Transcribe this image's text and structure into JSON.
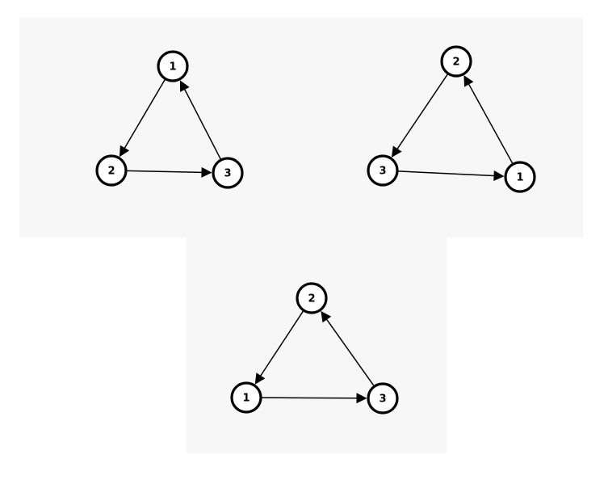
{
  "diagrams": [
    {
      "id": "graph-a",
      "nodes": [
        {
          "id": "a1",
          "label": "1"
        },
        {
          "id": "a2",
          "label": "2"
        },
        {
          "id": "a3",
          "label": "3"
        }
      ],
      "edges": [
        {
          "from": "a1",
          "to": "a2"
        },
        {
          "from": "a2",
          "to": "a3"
        },
        {
          "from": "a3",
          "to": "a1"
        }
      ]
    },
    {
      "id": "graph-b",
      "nodes": [
        {
          "id": "b2",
          "label": "2"
        },
        {
          "id": "b3",
          "label": "3"
        },
        {
          "id": "b1",
          "label": "1"
        }
      ],
      "edges": [
        {
          "from": "b2",
          "to": "b3"
        },
        {
          "from": "b3",
          "to": "b1"
        },
        {
          "from": "b1",
          "to": "b2"
        }
      ]
    },
    {
      "id": "graph-c",
      "nodes": [
        {
          "id": "c2",
          "label": "2"
        },
        {
          "id": "c1",
          "label": "1"
        },
        {
          "id": "c3",
          "label": "3"
        }
      ],
      "edges": [
        {
          "from": "c2",
          "to": "c1"
        },
        {
          "from": "c1",
          "to": "c3"
        },
        {
          "from": "c3",
          "to": "c2"
        }
      ]
    }
  ]
}
